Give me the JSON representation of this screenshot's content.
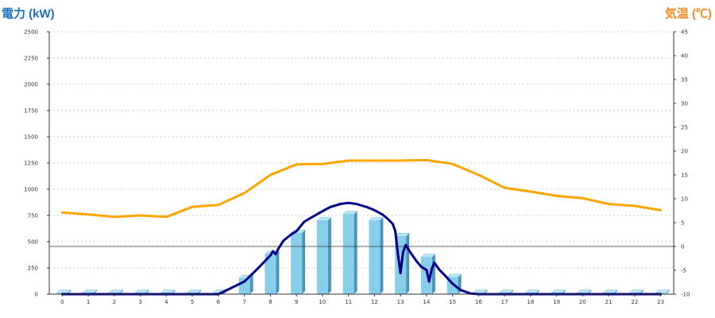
{
  "chart_data": {
    "type": "bar",
    "left_axis_label": "電力 (kW)",
    "right_axis_label": "気温 (℃)",
    "categories": [
      "0",
      "1",
      "2",
      "3",
      "4",
      "5",
      "6",
      "7",
      "8",
      "9",
      "10",
      "11",
      "12",
      "13",
      "14",
      "15",
      "16",
      "17",
      "18",
      "19",
      "20",
      "21",
      "22",
      "23"
    ],
    "left_ylim": [
      0,
      2500
    ],
    "left_ticks": [
      0,
      250,
      500,
      750,
      1000,
      1250,
      1500,
      1750,
      2000,
      2250,
      2500
    ],
    "right_ylim": [
      -10,
      45
    ],
    "right_ticks": [
      -10,
      -5,
      0,
      5,
      10,
      15,
      20,
      25,
      30,
      35,
      40,
      45
    ],
    "grid": true,
    "bars": {
      "values": [
        10,
        10,
        10,
        10,
        10,
        10,
        10,
        150,
        380,
        580,
        700,
        760,
        700,
        550,
        350,
        160,
        10,
        10,
        10,
        10,
        10,
        10,
        10,
        10
      ],
      "color": "#87CEEB"
    },
    "power_line": {
      "x": [
        0,
        6,
        6.5,
        7,
        7.5,
        8,
        8.1,
        8.2,
        8.3,
        8.5,
        8.8,
        9,
        9.3,
        9.5,
        10,
        10.3,
        10.7,
        11,
        11.3,
        11.7,
        12,
        12.3,
        12.5,
        12.7,
        12.8,
        12.9,
        13,
        13.1,
        13.2,
        13.4,
        13.6,
        13.8,
        14,
        14.1,
        14.2,
        14.3,
        14.5,
        14.7,
        15,
        15.3,
        15.7,
        16,
        23
      ],
      "values": [
        0,
        0,
        60,
        120,
        240,
        370,
        410,
        380,
        430,
        510,
        570,
        600,
        690,
        720,
        790,
        830,
        860,
        870,
        860,
        830,
        800,
        760,
        720,
        670,
        600,
        380,
        200,
        400,
        470,
        390,
        320,
        260,
        230,
        120,
        240,
        300,
        230,
        180,
        100,
        40,
        5,
        0,
        0
      ],
      "color": "#00008B"
    },
    "temperature_line": {
      "x": [
        0,
        1,
        2,
        3,
        4,
        5,
        6,
        7,
        8,
        9,
        10,
        11,
        12,
        13,
        14,
        15,
        16,
        17,
        18,
        19,
        20,
        21,
        22,
        23
      ],
      "values": [
        7.1,
        6.7,
        6.2,
        6.5,
        6.2,
        8.3,
        8.7,
        11.2,
        15.0,
        17.2,
        17.3,
        18.0,
        18.0,
        18.0,
        18.1,
        17.3,
        15.0,
        12.3,
        11.5,
        10.6,
        10.1,
        8.9,
        8.5,
        7.6
      ],
      "color": "#FFA500"
    },
    "zero_line_value": 0
  }
}
